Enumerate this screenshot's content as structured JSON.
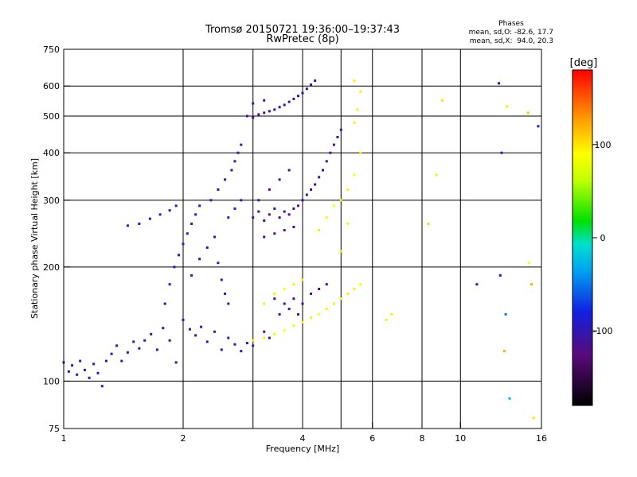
{
  "chart_data": {
    "type": "scatter",
    "title": "Tromsø 20150721 19:36:00–19:37:43",
    "subtitle": "RwPretec (8p)",
    "xlabel": "Frequency [MHz]",
    "ylabel": "Stationary phase Virtual Height [km]",
    "x_scale": "log",
    "y_scale": "log",
    "xlim": [
      1,
      16
    ],
    "ylim": [
      75,
      750
    ],
    "x_ticks": [
      1,
      2,
      4,
      6,
      8,
      10,
      16
    ],
    "y_ticks": [
      75,
      100,
      200,
      300,
      400,
      500,
      600,
      750
    ],
    "grid": true,
    "phases": {
      "title": "Phases",
      "line1": "mean, sd,O: -82.6, 17.7",
      "line2": "mean, sd,X:  94.0, 20.3"
    },
    "colorbar": {
      "label": "[deg]",
      "range": [
        -180,
        180
      ],
      "ticks": [
        100,
        0,
        -100
      ],
      "tick_labels": [
        "100",
        "0",
        "-100"
      ]
    },
    "series": [
      {
        "points": [
          [
            1.0,
            112,
            -95
          ],
          [
            1.03,
            106,
            -90
          ],
          [
            1.05,
            110,
            -95
          ],
          [
            1.08,
            104,
            -92
          ],
          [
            1.1,
            113,
            -95
          ],
          [
            1.13,
            107,
            -90
          ],
          [
            1.16,
            102,
            -93
          ],
          [
            1.19,
            111,
            -95
          ],
          [
            1.22,
            105,
            -90
          ],
          [
            1.25,
            97,
            -95
          ],
          [
            1.28,
            113,
            -92
          ],
          [
            1.32,
            118,
            -95
          ],
          [
            1.36,
            124,
            -95
          ],
          [
            1.4,
            113,
            -100
          ],
          [
            1.45,
            119,
            -100
          ],
          [
            1.5,
            127,
            -100
          ],
          [
            1.55,
            122,
            -105
          ],
          [
            1.6,
            128,
            -105
          ],
          [
            1.66,
            133,
            -110
          ],
          [
            1.72,
            121,
            -110
          ],
          [
            1.78,
            138,
            -110
          ],
          [
            1.85,
            128,
            -110
          ],
          [
            1.92,
            112,
            -105
          ],
          [
            2.0,
            145,
            -100
          ],
          [
            2.08,
            137,
            -110
          ],
          [
            2.15,
            132,
            -110
          ],
          [
            2.22,
            139,
            -105
          ],
          [
            2.3,
            127,
            -110
          ],
          [
            2.4,
            135,
            -105
          ],
          [
            2.5,
            121,
            -100
          ],
          [
            2.6,
            130,
            -110
          ],
          [
            2.7,
            125,
            -100
          ],
          [
            2.8,
            120,
            -100
          ],
          [
            2.9,
            126,
            -105
          ],
          [
            3.0,
            124,
            -100
          ]
        ]
      },
      {
        "points": [
          [
            1.45,
            257,
            -95
          ],
          [
            1.55,
            260,
            -95
          ],
          [
            1.65,
            268,
            -95
          ],
          [
            1.75,
            275,
            -95
          ],
          [
            1.85,
            282,
            -90
          ],
          [
            1.92,
            290,
            -90
          ]
        ]
      },
      {
        "points": [
          [
            1.8,
            160,
            -90
          ],
          [
            1.85,
            180,
            -95
          ],
          [
            1.9,
            200,
            -92
          ],
          [
            1.95,
            215,
            -95
          ],
          [
            2.0,
            230,
            -90
          ],
          [
            2.05,
            245,
            -95
          ],
          [
            2.1,
            260,
            -95
          ],
          [
            2.15,
            275,
            -90
          ],
          [
            2.2,
            290,
            -95
          ],
          [
            2.1,
            190,
            -92
          ],
          [
            2.2,
            210,
            -95
          ],
          [
            2.3,
            225,
            -90
          ],
          [
            2.4,
            240,
            -95
          ],
          [
            2.45,
            205,
            -92
          ],
          [
            2.5,
            185,
            -95
          ],
          [
            2.55,
            170,
            -95
          ],
          [
            2.6,
            160,
            -90
          ],
          [
            2.35,
            300,
            -100
          ],
          [
            2.45,
            320,
            -100
          ],
          [
            2.55,
            340,
            -105
          ],
          [
            2.65,
            360,
            -100
          ],
          [
            2.7,
            380,
            -100
          ],
          [
            2.75,
            400,
            -105
          ],
          [
            2.8,
            420,
            -105
          ],
          [
            2.6,
            270,
            -95
          ],
          [
            2.7,
            285,
            -92
          ],
          [
            2.8,
            300,
            -95
          ]
        ]
      },
      {
        "points": [
          [
            2.9,
            500,
            -110
          ],
          [
            3.0,
            495,
            -115
          ],
          [
            3.1,
            505,
            -110
          ],
          [
            3.2,
            510,
            -115
          ],
          [
            3.3,
            515,
            -110
          ],
          [
            3.4,
            520,
            -115
          ],
          [
            3.5,
            528,
            -110
          ],
          [
            3.6,
            535,
            -115
          ],
          [
            3.7,
            545,
            -110
          ],
          [
            3.8,
            555,
            -115
          ],
          [
            3.9,
            565,
            -110
          ],
          [
            4.0,
            575,
            -115
          ],
          [
            4.1,
            590,
            -110
          ],
          [
            4.2,
            605,
            -115
          ],
          [
            4.3,
            620,
            -110
          ],
          [
            3.0,
            540,
            -110
          ],
          [
            3.2,
            550,
            -115
          ]
        ]
      },
      {
        "points": [
          [
            3.0,
            270,
            -115
          ],
          [
            3.1,
            280,
            -120
          ],
          [
            3.2,
            265,
            -115
          ],
          [
            3.3,
            275,
            -120
          ],
          [
            3.4,
            285,
            -115
          ],
          [
            3.5,
            270,
            -120
          ],
          [
            3.6,
            280,
            -115
          ],
          [
            3.7,
            275,
            -120
          ],
          [
            3.8,
            285,
            -115
          ],
          [
            3.9,
            290,
            -120
          ],
          [
            4.0,
            300,
            -115
          ],
          [
            4.1,
            310,
            -110
          ],
          [
            4.2,
            320,
            -115
          ],
          [
            4.3,
            330,
            -110
          ],
          [
            4.4,
            345,
            -115
          ],
          [
            4.5,
            360,
            -110
          ],
          [
            4.6,
            380,
            -115
          ],
          [
            4.7,
            400,
            -110
          ],
          [
            4.8,
            420,
            -115
          ],
          [
            4.9,
            440,
            -110
          ],
          [
            5.0,
            460,
            -115
          ],
          [
            3.2,
            240,
            -115
          ],
          [
            3.4,
            245,
            -120
          ],
          [
            3.6,
            250,
            -115
          ],
          [
            3.8,
            255,
            -120
          ],
          [
            3.1,
            300,
            -110
          ],
          [
            3.3,
            320,
            -115
          ],
          [
            3.5,
            340,
            -110
          ],
          [
            3.7,
            360,
            -115
          ]
        ]
      },
      {
        "points": [
          [
            3.4,
            165,
            -115
          ],
          [
            3.6,
            160,
            -120
          ],
          [
            3.8,
            165,
            -115
          ],
          [
            4.0,
            160,
            -120
          ],
          [
            4.2,
            170,
            -115
          ],
          [
            4.4,
            175,
            -120
          ],
          [
            4.6,
            180,
            -115
          ],
          [
            3.5,
            150,
            -115
          ],
          [
            3.7,
            155,
            -120
          ],
          [
            3.9,
            150,
            -115
          ],
          [
            3.2,
            135,
            -120
          ],
          [
            3.3,
            130,
            -115
          ]
        ]
      },
      {
        "points": [
          [
            3.0,
            128,
            95
          ],
          [
            3.2,
            130,
            95
          ],
          [
            3.4,
            133,
            95
          ],
          [
            3.6,
            136,
            90
          ],
          [
            3.8,
            140,
            95
          ],
          [
            4.0,
            143,
            95
          ],
          [
            4.2,
            147,
            95
          ],
          [
            4.4,
            150,
            90
          ],
          [
            4.6,
            155,
            95
          ],
          [
            4.8,
            160,
            95
          ],
          [
            5.0,
            165,
            90
          ],
          [
            5.2,
            170,
            95
          ],
          [
            5.4,
            175,
            95
          ],
          [
            5.6,
            180,
            90
          ],
          [
            3.2,
            160,
            95
          ],
          [
            3.4,
            170,
            95
          ],
          [
            3.6,
            175,
            90
          ],
          [
            3.8,
            180,
            95
          ],
          [
            4.0,
            185,
            95
          ],
          [
            4.4,
            250,
            95
          ],
          [
            4.6,
            270,
            95
          ],
          [
            4.8,
            290,
            90
          ],
          [
            5.0,
            300,
            95
          ],
          [
            5.2,
            320,
            95
          ],
          [
            5.4,
            350,
            90
          ],
          [
            5.6,
            400,
            95
          ],
          [
            5.4,
            480,
            95
          ],
          [
            5.5,
            520,
            95
          ],
          [
            5.6,
            580,
            95
          ],
          [
            5.4,
            620,
            95
          ],
          [
            5.2,
            260,
            95
          ],
          [
            5.0,
            220,
            95
          ]
        ]
      },
      {
        "points": [
          [
            6.5,
            145,
            95
          ],
          [
            6.7,
            150,
            95
          ],
          [
            8.3,
            260,
            60
          ],
          [
            8.7,
            350,
            75
          ],
          [
            9.0,
            550,
            100
          ],
          [
            11.0,
            180,
            -100
          ],
          [
            12.5,
            610,
            -100
          ],
          [
            12.7,
            400,
            -100
          ],
          [
            12.9,
            120,
            120
          ],
          [
            13.1,
            530,
            100
          ],
          [
            13.3,
            90,
            -30
          ],
          [
            14.8,
            510,
            110
          ],
          [
            14.9,
            205,
            90
          ],
          [
            15.1,
            180,
            120
          ],
          [
            15.3,
            80,
            100
          ],
          [
            15.7,
            470,
            -100
          ],
          [
            12.6,
            190,
            -90
          ],
          [
            13.0,
            150,
            -50
          ]
        ]
      }
    ]
  }
}
